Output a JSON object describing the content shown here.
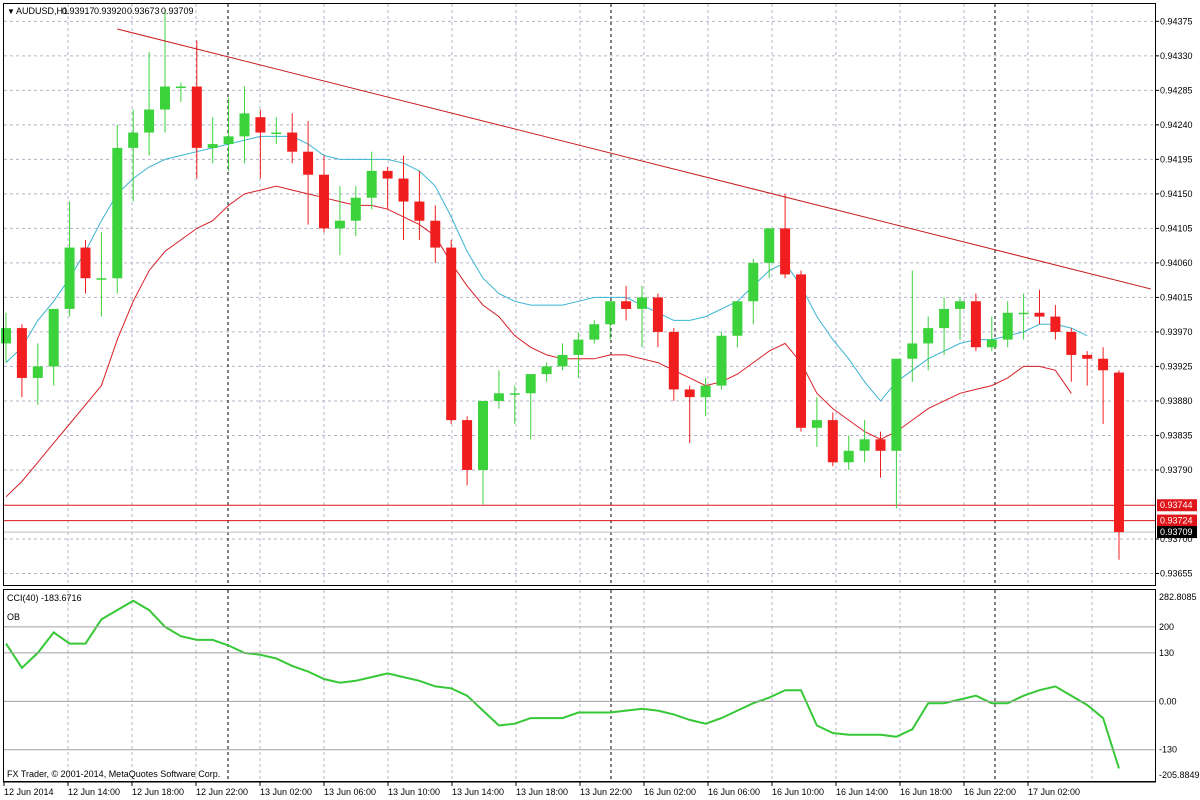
{
  "main": {
    "header": {
      "arrow": "▼",
      "symbol": "AUDUSD,H1",
      "open": "0.93917",
      "high": "0.93920",
      "low": "0.93673",
      "close": "0.93709"
    },
    "yticks": [
      "0.94375",
      "0.94330",
      "0.94285",
      "0.94240",
      "0.94195",
      "0.94150",
      "0.94105",
      "0.94060",
      "0.94015",
      "0.93970",
      "0.93925",
      "0.93880",
      "0.93835",
      "0.93790",
      "0.93744",
      "0.93724",
      "0.93709",
      "0.93700",
      "0.93655"
    ],
    "price_tags": [
      {
        "label": "0.93744",
        "price": 0.93744,
        "color": "#e0151b"
      },
      {
        "label": "0.93724",
        "price": 0.93724,
        "color": "#e0151b"
      },
      {
        "label": "0.93709",
        "price": 0.93709,
        "color": "#000000"
      }
    ],
    "hlines": [
      {
        "price": 0.93744,
        "color": "#e0151b"
      },
      {
        "price": 0.93724,
        "color": "#e0151b"
      },
      {
        "price": 0.93709,
        "color": "#bfbfbf"
      }
    ],
    "trendline": {
      "from": [
        7,
        0.94365
      ],
      "to": [
        72,
        0.94026
      ],
      "color": "#c81e1e"
    }
  },
  "indicator": {
    "label": "CCI(40) -183.6716",
    "ob_label": "OB",
    "levels": [
      {
        "label": "200",
        "value": 200
      },
      {
        "label": "130",
        "value": 130
      },
      {
        "label": "0.00",
        "value": 0
      },
      {
        "label": "-130",
        "value": -130
      }
    ],
    "top_label": "282.8085",
    "bottom_label": "-205.8849",
    "values": [
      155,
      90,
      130,
      185,
      155,
      155,
      220,
      245,
      270,
      245,
      200,
      175,
      165,
      165,
      150,
      130,
      125,
      115,
      95,
      80,
      60,
      50,
      55,
      65,
      75,
      65,
      55,
      40,
      35,
      15,
      -25,
      -65,
      -60,
      -45,
      -45,
      -45,
      -30,
      -30,
      -30,
      -25,
      -20,
      -25,
      -35,
      -50,
      -60,
      -45,
      -25,
      -5,
      10,
      30,
      30,
      -65,
      -85,
      -90,
      -90,
      -90,
      -95,
      -75,
      -5,
      -5,
      5,
      15,
      -5,
      -5,
      15,
      30,
      40,
      15,
      -10,
      -45,
      -180
    ]
  },
  "copyright": "FX Trader, © 2001-2014, MetaQuotes Software Corp.",
  "xlabels": [
    "12 Jun 2014",
    "12 Jun 14:00",
    "12 Jun 18:00",
    "12 Jun 22:00",
    "13 Jun 02:00",
    "13 Jun 06:00",
    "13 Jun 10:00",
    "13 Jun 14:00",
    "13 Jun 18:00",
    "13 Jun 22:00",
    "16 Jun 02:00",
    "16 Jun 06:00",
    "16 Jun 10:00",
    "16 Jun 14:00",
    "16 Jun 18:00",
    "16 Jun 22:00",
    "17 Jun 02:00"
  ],
  "colors": {
    "bull": "#3cd23c",
    "bear": "#f01e1e",
    "ma_fast": "#39b3d0",
    "ma_slow": "#d71f26",
    "cci": "#36c836",
    "grid": "#b4b4c8"
  },
  "chart_data": {
    "type": "candlestick",
    "symbol": "AUDUSD",
    "timeframe": "H1",
    "ohlc": [
      [
        0.93955,
        0.93995,
        0.9393,
        0.93975
      ],
      [
        0.93975,
        0.9398,
        0.93885,
        0.9391
      ],
      [
        0.9391,
        0.93955,
        0.93875,
        0.93925
      ],
      [
        0.93925,
        0.94,
        0.939,
        0.94
      ],
      [
        0.94,
        0.9414,
        0.9399,
        0.9408
      ],
      [
        0.9408,
        0.9409,
        0.9402,
        0.9404
      ],
      [
        0.9404,
        0.941,
        0.9399,
        0.9404
      ],
      [
        0.9404,
        0.9424,
        0.9402,
        0.9421
      ],
      [
        0.9421,
        0.9426,
        0.9414,
        0.9423
      ],
      [
        0.9423,
        0.94335,
        0.942,
        0.9426
      ],
      [
        0.9426,
        0.9439,
        0.9423,
        0.9429
      ],
      [
        0.9429,
        0.94295,
        0.9427,
        0.9429
      ],
      [
        0.9429,
        0.9435,
        0.9417,
        0.9421
      ],
      [
        0.9421,
        0.9425,
        0.9419,
        0.94215
      ],
      [
        0.94215,
        0.94275,
        0.9418,
        0.94225
      ],
      [
        0.94225,
        0.9429,
        0.9419,
        0.94255
      ],
      [
        0.9425,
        0.9426,
        0.9417,
        0.9423
      ],
      [
        0.9423,
        0.9425,
        0.94215,
        0.9423
      ],
      [
        0.9423,
        0.94255,
        0.9419,
        0.94205
      ],
      [
        0.94205,
        0.94245,
        0.9411,
        0.94175
      ],
      [
        0.94175,
        0.942,
        0.941,
        0.94105
      ],
      [
        0.94105,
        0.9416,
        0.9407,
        0.94115
      ],
      [
        0.94115,
        0.9416,
        0.94095,
        0.94145
      ],
      [
        0.94145,
        0.94205,
        0.9413,
        0.9418
      ],
      [
        0.9418,
        0.94185,
        0.9413,
        0.9417
      ],
      [
        0.9417,
        0.942,
        0.9409,
        0.9414
      ],
      [
        0.9414,
        0.9418,
        0.9409,
        0.94115
      ],
      [
        0.94115,
        0.94135,
        0.9406,
        0.9408
      ],
      [
        0.9408,
        0.9409,
        0.9385,
        0.93855
      ],
      [
        0.93855,
        0.9386,
        0.9377,
        0.9379
      ],
      [
        0.9379,
        0.9388,
        0.93745,
        0.9388
      ],
      [
        0.9388,
        0.9392,
        0.9387,
        0.9389
      ],
      [
        0.9389,
        0.939,
        0.9385,
        0.9389
      ],
      [
        0.9389,
        0.93915,
        0.9383,
        0.93915
      ],
      [
        0.93915,
        0.9393,
        0.93905,
        0.93925
      ],
      [
        0.93925,
        0.93955,
        0.9392,
        0.9394
      ],
      [
        0.9394,
        0.9397,
        0.9391,
        0.9396
      ],
      [
        0.9396,
        0.93985,
        0.93955,
        0.9398
      ],
      [
        0.9398,
        0.9401,
        0.9396,
        0.9401
      ],
      [
        0.9401,
        0.9403,
        0.93985,
        0.94
      ],
      [
        0.94,
        0.9403,
        0.9395,
        0.94015
      ],
      [
        0.94015,
        0.9402,
        0.9395,
        0.9397
      ],
      [
        0.9397,
        0.93975,
        0.9388,
        0.93895
      ],
      [
        0.93895,
        0.939,
        0.93825,
        0.93885
      ],
      [
        0.93885,
        0.9391,
        0.9386,
        0.939
      ],
      [
        0.939,
        0.9397,
        0.93895,
        0.93965
      ],
      [
        0.93965,
        0.9401,
        0.9395,
        0.9401
      ],
      [
        0.9401,
        0.94065,
        0.9398,
        0.9406
      ],
      [
        0.9406,
        0.94105,
        0.9404,
        0.94105
      ],
      [
        0.94105,
        0.9415,
        0.9404,
        0.94045
      ],
      [
        0.94045,
        0.9405,
        0.9384,
        0.93845
      ],
      [
        0.93845,
        0.93885,
        0.9382,
        0.93855
      ],
      [
        0.93855,
        0.93865,
        0.93795,
        0.938
      ],
      [
        0.938,
        0.93835,
        0.9379,
        0.93815
      ],
      [
        0.93815,
        0.93855,
        0.938,
        0.9383
      ],
      [
        0.9383,
        0.9384,
        0.9378,
        0.93815
      ],
      [
        0.93815,
        0.93935,
        0.9374,
        0.93935
      ],
      [
        0.93935,
        0.9405,
        0.93905,
        0.93955
      ],
      [
        0.93955,
        0.9399,
        0.9392,
        0.93975
      ],
      [
        0.93975,
        0.94015,
        0.9394,
        0.94
      ],
      [
        0.94,
        0.94015,
        0.9396,
        0.9401
      ],
      [
        0.9401,
        0.9402,
        0.93945,
        0.9395
      ],
      [
        0.9395,
        0.9399,
        0.93945,
        0.9396
      ],
      [
        0.9396,
        0.9401,
        0.9395,
        0.93995
      ],
      [
        0.93995,
        0.9402,
        0.9396,
        0.93995
      ],
      [
        0.93995,
        0.94025,
        0.9398,
        0.9399
      ],
      [
        0.9399,
        0.94005,
        0.9396,
        0.9397
      ],
      [
        0.9397,
        0.93975,
        0.93905,
        0.9394
      ],
      [
        0.9394,
        0.93945,
        0.939,
        0.93935
      ],
      [
        0.93935,
        0.9395,
        0.9385,
        0.9392
      ],
      [
        0.93917,
        0.9392,
        0.93673,
        0.93709
      ]
    ],
    "ma_fast": [
      0.9393,
      0.9395,
      0.93985,
      0.9401,
      0.9404,
      0.94075,
      0.94115,
      0.9415,
      0.9417,
      0.94185,
      0.94195,
      0.942,
      0.94205,
      0.9421,
      0.94215,
      0.9422,
      0.94225,
      0.94225,
      0.94225,
      0.94215,
      0.942,
      0.94195,
      0.94195,
      0.94195,
      0.94195,
      0.9419,
      0.9418,
      0.9416,
      0.9412,
      0.94075,
      0.9404,
      0.9402,
      0.9401,
      0.94005,
      0.94005,
      0.94005,
      0.9401,
      0.94015,
      0.94015,
      0.94015,
      0.94005,
      0.93995,
      0.93985,
      0.93985,
      0.9399,
      0.94,
      0.9401,
      0.9403,
      0.9405,
      0.9406,
      0.9403,
      0.9399,
      0.9396,
      0.93935,
      0.93905,
      0.9388,
      0.93905,
      0.9392,
      0.93935,
      0.93945,
      0.93955,
      0.9396,
      0.9396,
      0.93965,
      0.9397,
      0.9398,
      0.9398,
      0.93975,
      0.93965
    ],
    "ma_slow": [
      0.93755,
      0.93775,
      0.938,
      0.93825,
      0.9385,
      0.93875,
      0.939,
      0.9396,
      0.9401,
      0.9405,
      0.94075,
      0.9409,
      0.94105,
      0.94115,
      0.94135,
      0.9415,
      0.94155,
      0.9416,
      0.94155,
      0.9415,
      0.94145,
      0.9414,
      0.94135,
      0.94135,
      0.9413,
      0.9412,
      0.9411,
      0.94095,
      0.9406,
      0.9403,
      0.94005,
      0.9399,
      0.93965,
      0.9395,
      0.9394,
      0.93935,
      0.93935,
      0.93935,
      0.9394,
      0.9394,
      0.93935,
      0.9393,
      0.9392,
      0.9391,
      0.939,
      0.93905,
      0.93915,
      0.9393,
      0.93945,
      0.93955,
      0.9393,
      0.9389,
      0.9387,
      0.93855,
      0.9384,
      0.9383,
      0.9384,
      0.93855,
      0.9387,
      0.9388,
      0.9389,
      0.93895,
      0.939,
      0.9391,
      0.93925,
      0.93925,
      0.9392,
      0.9389
    ],
    "ylim": [
      0.9364,
      0.94395
    ]
  }
}
